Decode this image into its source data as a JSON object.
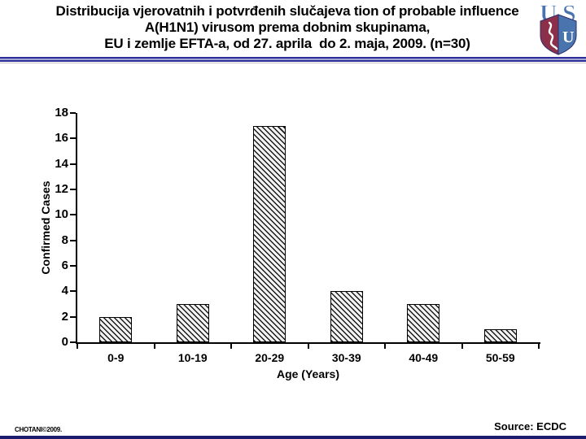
{
  "slide": {
    "title_lines": [
      "Distribucija vjerovatnih i potvrđenih slučajeva tion of probable influence",
      "A(H1N1) virusom prema dobnim skupinama,",
      "EU i zemlje EFTA-a, od 27. aprila  do 2. maja, 2009. (n=30)"
    ],
    "footer_left": "CHOTANI©2009.",
    "footer_right": "Source: ECDC"
  },
  "logo": {
    "letter_u": "U",
    "letter_s": "S",
    "shield_letter": "U"
  },
  "colors": {
    "separator_navy": "#2e2e99",
    "separator_light_blue": "#9fa3d4",
    "bottom_bar_navy": "#1c1c6e",
    "logo_blue": "#4a74ad",
    "logo_maroon": "#8c3049",
    "bar_hatch": "#1a1a1a",
    "text": "#000000"
  },
  "chart_data": {
    "type": "bar",
    "categories": [
      "0-9",
      "10-19",
      "20-29",
      "30-39",
      "40-49",
      "50-59"
    ],
    "values": [
      2,
      3,
      17,
      4,
      3,
      1
    ],
    "title": "",
    "xlabel": "Age (Years)",
    "ylabel": "Confirmed Cases",
    "ylim": [
      0,
      18
    ],
    "ytick_step": 2,
    "grid": false,
    "legend": false,
    "bar_style": "black diagonal hatch on white, black border"
  }
}
